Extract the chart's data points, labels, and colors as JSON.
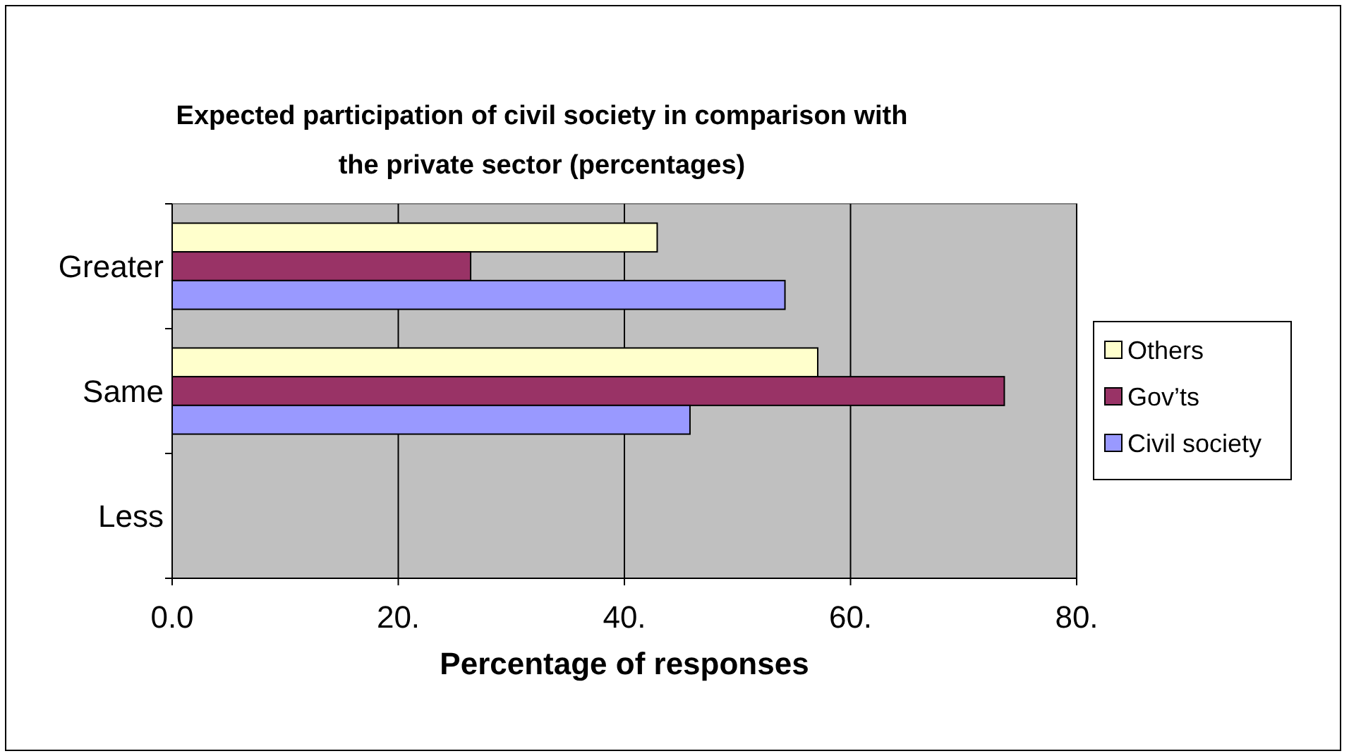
{
  "chart_data": {
    "type": "bar",
    "orientation": "horizontal",
    "title": "Expected participation of civil society in comparison with the private sector (percentages)",
    "xlabel": "Percentage of responses",
    "categories": [
      "Greater",
      "Same",
      "Less"
    ],
    "series": [
      {
        "name": "Others",
        "color": "#ffffcc",
        "values": [
          42.9,
          57.1,
          null
        ]
      },
      {
        "name": "Gov’ts",
        "color": "#993366",
        "values": [
          26.4,
          73.6,
          null
        ]
      },
      {
        "name": "Civil society",
        "color": "#9999ff",
        "values": [
          54.2,
          45.8,
          null
        ]
      }
    ],
    "xlim": [
      0,
      80
    ],
    "xticks": [
      {
        "value": 0,
        "label": "0.0"
      },
      {
        "value": 20,
        "label": "20."
      },
      {
        "value": 40,
        "label": "40."
      },
      {
        "value": 60,
        "label": "60."
      },
      {
        "value": 80,
        "label": "80."
      }
    ],
    "grid": "x",
    "legend": "right"
  }
}
